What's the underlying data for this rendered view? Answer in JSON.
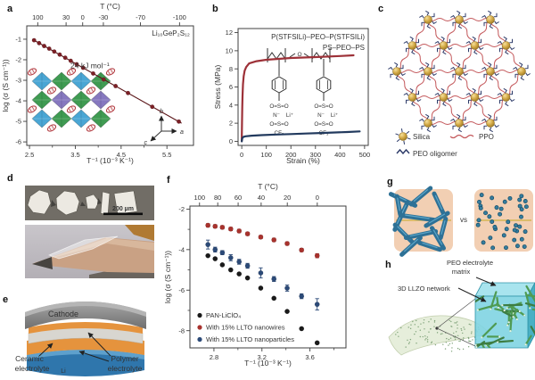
{
  "panels": {
    "a": {
      "label": "a",
      "inset_axis_labels": [
        "b",
        "a",
        "c"
      ]
    },
    "b": {
      "label": "b",
      "structure": {
        "sulfonyl_top": "O=S=O",
        "nitrogen": "N⁻",
        "lithium": "Li⁺",
        "sulfonyl_bottom": "O=S=O",
        "cf3": "CF₃",
        "ether_o": "O"
      }
    },
    "c": {
      "label": "c",
      "legend": {
        "silica": "Silica",
        "ppo": "PPO",
        "peo": "PEO oligomer"
      }
    },
    "d": {
      "label": "d",
      "scale_bar_text": "200 µm"
    },
    "e": {
      "label": "e",
      "labels": {
        "cathode": "Cathode",
        "ceramic_line1": "Ceramic",
        "ceramic_line2": "electrolyte",
        "polymer_line1": "Polymer",
        "polymer_line2": "electrolyte",
        "anode": "Li"
      }
    },
    "f": {
      "label": "f"
    },
    "g": {
      "label": "g",
      "vs_text": "vs"
    },
    "h": {
      "label": "h",
      "labels": {
        "peo_line1": "PEO electrolyte",
        "peo_line2": "matrix",
        "llzo": "3D LLZO network"
      }
    }
  },
  "colors": {
    "panel_a_series": "#7b2026",
    "stress_red": "#9d3138",
    "stress_blue": "#223a5e",
    "legend_blue_text": "#4d86bb",
    "f_black": "#1a1a1a",
    "f_red": "#a8322d",
    "f_blue": "#2c4a78",
    "silica_gold": "#d2a845",
    "ppo_red": "#c4595c",
    "peo_navy": "#2c3a68",
    "nanowire_teal": "#2e7196",
    "box_peach": "#f2cfb3",
    "divider_yellow": "#d4b654",
    "cube_cyan": "#7fd4e2",
    "network_green": "#4f9b53",
    "orange_layer": "#e5933d",
    "ceramic_gray": "#d8d6d0",
    "cathode_gray": "#8d8d8d",
    "li_blue": "#3c7fb1"
  },
  "chart_data": [
    {
      "id": "a",
      "type": "scatter",
      "top_axis_label": "T (°C)",
      "top_ticks_celsius": [
        100,
        30,
        0,
        -30,
        -70,
        -100
      ],
      "xlabel": "T⁻¹ (10⁻³ K⁻¹)",
      "ylabel": "log (σ (S cm⁻¹))",
      "xlim": [
        2.44,
        6.08
      ],
      "ylim": [
        -6.17,
        -0.35
      ],
      "xticks": [
        2.5,
        3.5,
        4.5,
        5.5
      ],
      "xticks_minor": [
        3.0,
        4.0,
        5.0
      ],
      "yticks": [
        -6,
        -5,
        -4,
        -3,
        -2,
        -1
      ],
      "series": [
        {
          "name": "Li10GeP2S12 conductivity",
          "mode": "scatter",
          "color": "#7b2026",
          "r": 2.3,
          "x": [
            2.6,
            2.71,
            2.82,
            2.93,
            3.04,
            3.16,
            3.28,
            3.4,
            3.53,
            3.67,
            3.89,
            4.12,
            4.38,
            4.65,
            5.18,
            5.76
          ],
          "y": [
            -1.05,
            -1.19,
            -1.33,
            -1.46,
            -1.6,
            -1.75,
            -1.9,
            -2.05,
            -2.22,
            -2.39,
            -2.67,
            -2.96,
            -3.28,
            -3.62,
            -4.29,
            -5.01
          ]
        }
      ],
      "fit_line": {
        "x1": 2.56,
        "y1": -1.0,
        "x2": 5.82,
        "y2": -5.09,
        "color": "#5a1518"
      },
      "annotations": [
        {
          "text": "Li₁₀GeP₂S₁₂",
          "x": 6.0,
          "y": -0.82,
          "anchor": "end",
          "color": "#333333",
          "size": 8
        },
        {
          "text": "24 kJ mol⁻¹",
          "x": 3.82,
          "y": -2.42,
          "anchor": "middle",
          "color": "#333333",
          "size": 8.5
        }
      ]
    },
    {
      "id": "b",
      "type": "line",
      "xlabel": "Strain (%)",
      "ylabel": "Stress (MPa)",
      "xlim": [
        -15,
        515
      ],
      "ylim": [
        -0.45,
        12.45
      ],
      "xticks": [
        0,
        100,
        200,
        300,
        400,
        500
      ],
      "yticks": [
        0,
        2,
        4,
        6,
        8,
        10,
        12
      ],
      "series": [
        {
          "name": "P(STFSILi)–PEO–P(STFSILi)",
          "mode": "line",
          "color": "#9d3138",
          "width": 2.2,
          "x": [
            0,
            1,
            2,
            3,
            5,
            8,
            12,
            18,
            30,
            60,
            100,
            200,
            300,
            400,
            455
          ],
          "y": [
            0,
            2.0,
            3.8,
            5.0,
            6.3,
            7.2,
            7.8,
            8.2,
            8.6,
            8.85,
            9.0,
            9.2,
            9.3,
            9.42,
            9.5
          ]
        },
        {
          "name": "PS–PEO–PS",
          "mode": "line",
          "color": "#223a5e",
          "width": 2.2,
          "x": [
            0,
            2,
            6,
            15,
            40,
            80,
            140,
            200,
            260,
            320,
            380,
            430,
            480
          ],
          "y": [
            0,
            0.35,
            0.48,
            0.55,
            0.62,
            0.68,
            0.75,
            0.8,
            0.86,
            0.92,
            0.98,
            1.03,
            1.1
          ]
        }
      ],
      "legend": [
        {
          "text": "P(STFSILi)–PEO–P(STFSILi)",
          "color": "#9d3138"
        },
        {
          "text": "PS–PEO–PS",
          "color": "#4d86bb"
        }
      ]
    },
    {
      "id": "f",
      "type": "scatter",
      "top_axis_label": "T (°C)",
      "top_ticks_celsius": [
        100,
        80,
        60,
        40,
        20,
        0
      ],
      "xlabel": "T⁻¹ (10⁻³ K⁻¹)",
      "ylabel": "log (σ (S cm⁻¹))",
      "xlim": [
        2.6,
        3.9
      ],
      "ylim": [
        -8.85,
        -1.85
      ],
      "xticks": [
        2.8,
        3.2,
        3.6
      ],
      "xticks_minor": [
        3.0,
        3.4,
        3.8
      ],
      "yticks": [
        -8,
        -6,
        -4,
        -2
      ],
      "yticks_minor": [
        -7,
        -5,
        -3
      ],
      "series": [
        {
          "name": "PAN-LiClO₄",
          "mode": "scatter",
          "color": "#1a1a1a",
          "r": 2.7,
          "x": [
            2.75,
            2.81,
            2.87,
            2.94,
            3.01,
            3.08,
            3.19,
            3.3,
            3.41,
            3.53,
            3.66
          ],
          "y": [
            -4.3,
            -4.45,
            -4.75,
            -5.0,
            -5.2,
            -5.4,
            -5.9,
            -6.4,
            -7.05,
            -7.9,
            -8.6
          ]
        },
        {
          "name": "With 15% LLTO nanowires",
          "mode": "scatter",
          "color": "#a8322d",
          "r": 2.7,
          "x": [
            2.75,
            2.81,
            2.87,
            2.94,
            3.01,
            3.08,
            3.19,
            3.3,
            3.41,
            3.53,
            3.66
          ],
          "y": [
            -2.8,
            -2.85,
            -2.9,
            -2.98,
            -3.08,
            -3.22,
            -3.38,
            -3.52,
            -3.7,
            -4.02,
            -4.3
          ],
          "err": [
            0.08,
            0.08,
            0.08,
            0.08,
            0.08,
            0.08,
            0.08,
            0.08,
            0.08,
            0.08,
            0.1
          ]
        },
        {
          "name": "With 15% LLTO nanoparticles",
          "mode": "scatter",
          "color": "#2c4a78",
          "r": 2.7,
          "x": [
            2.75,
            2.81,
            2.87,
            2.94,
            3.01,
            3.08,
            3.19,
            3.3,
            3.41,
            3.53,
            3.66
          ],
          "y": [
            -3.75,
            -4.0,
            -4.15,
            -4.4,
            -4.6,
            -4.8,
            -5.15,
            -5.45,
            -5.9,
            -6.3,
            -6.7
          ],
          "err": [
            0.22,
            0.12,
            0.1,
            0.15,
            0.12,
            0.12,
            0.25,
            0.12,
            0.15,
            0.12,
            0.28
          ]
        }
      ],
      "legend": [
        {
          "text": "PAN-LiClO₄",
          "color": "#1a1a1a"
        },
        {
          "text": "With 15% LLTO nanowires",
          "color": "#a8322d"
        },
        {
          "text": "With 15% LLTO nanoparticles",
          "color": "#2c4a78"
        }
      ]
    }
  ]
}
